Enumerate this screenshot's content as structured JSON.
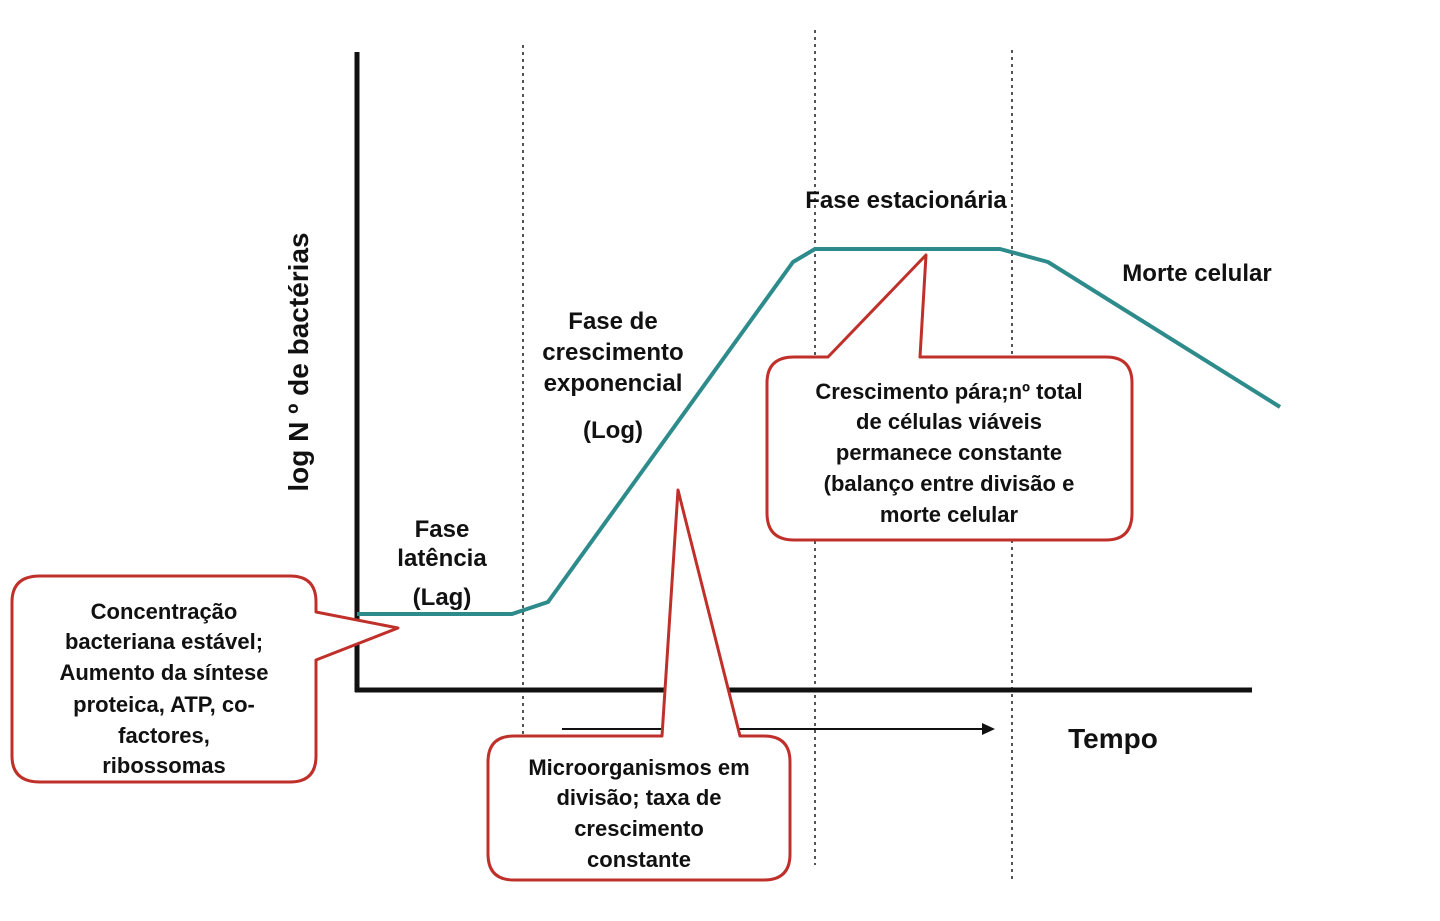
{
  "axes": {
    "y_label": "log N º de bactérias",
    "x_label": "Tempo"
  },
  "phases": {
    "lag": [
      "Fase",
      "latência",
      "(Lag)"
    ],
    "log": [
      "Fase de",
      "crescimento",
      "exponencial",
      "(Log)"
    ],
    "stationary": [
      "Fase estacionária"
    ],
    "death": [
      "Morte celular"
    ]
  },
  "callouts": {
    "lag": [
      "Concentração",
      "bacteriana estável;",
      "Aumento da síntese",
      "proteica, ATP, co-",
      "factores,",
      "ribossomas"
    ],
    "log": [
      "Microorganismos em",
      "divisão; taxa de",
      "crescimento",
      "constante"
    ],
    "stationary": [
      "Crescimento pára;nº total",
      "de células viáveis",
      "permanece constante",
      "(balanço entre divisão e",
      "morte celular"
    ]
  },
  "colors": {
    "curve": "#2e8b8b",
    "callout_border": "#c0302a",
    "axis": "#111111",
    "divider": "#555555"
  }
}
